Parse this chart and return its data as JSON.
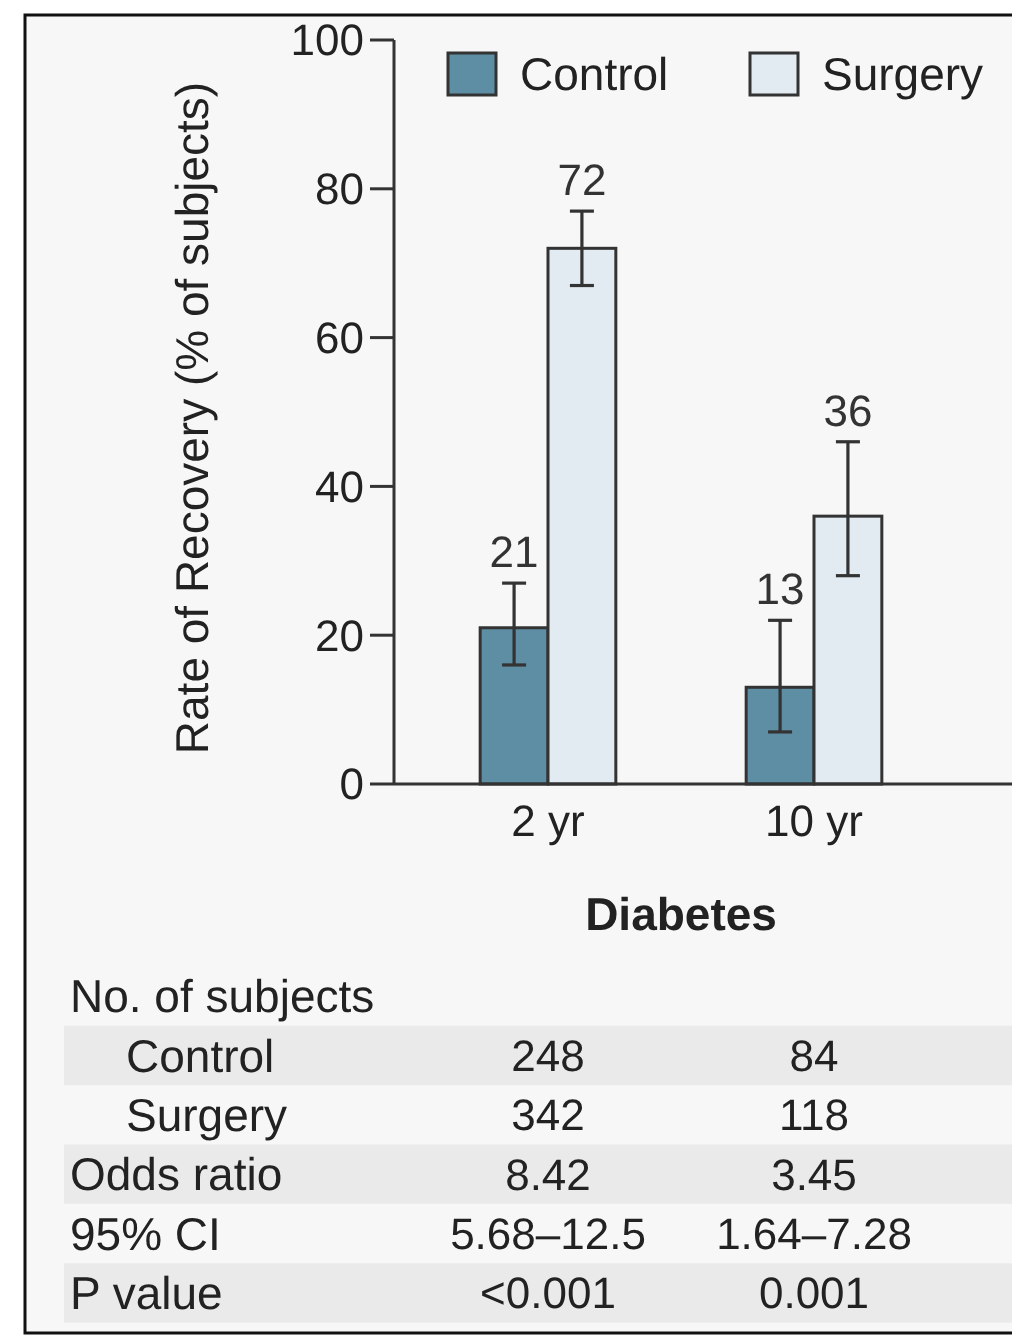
{
  "chart_data": {
    "type": "bar",
    "xlabel": "Diabetes",
    "ylabel": "Rate of Recovery (% of subjects)",
    "categories": [
      "2 yr",
      "10 yr"
    ],
    "series": [
      {
        "name": "Control",
        "color": "#5e8ea3",
        "values": [
          21,
          13
        ],
        "errors": [
          [
            16,
            27
          ],
          [
            7,
            22
          ]
        ]
      },
      {
        "name": "Surgery",
        "color": "#e3ebf2",
        "values": [
          72,
          36
        ],
        "errors": [
          [
            67,
            77
          ],
          [
            28,
            46
          ]
        ]
      }
    ],
    "ylim": [
      0,
      100
    ],
    "yticks": [
      0,
      20,
      40,
      60,
      80,
      100
    ],
    "legend": "top",
    "data_labels": true,
    "annotations": [
      "No. of subjects",
      "Control",
      "248",
      "84",
      "Surgery",
      "342",
      "118",
      "Odds ratio",
      "8.42",
      "3.45",
      "95% CI",
      "5.68–12.5",
      "1.64–7.28",
      "P value",
      "<0.001",
      "0.001"
    ]
  }
}
